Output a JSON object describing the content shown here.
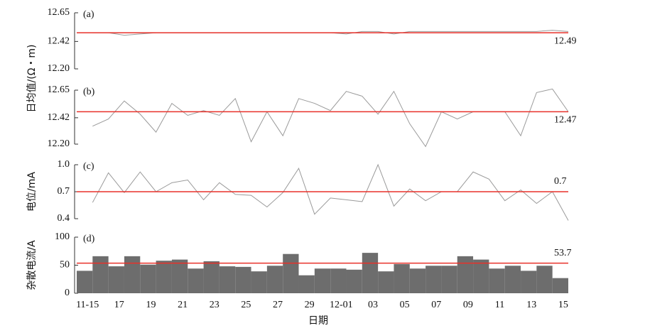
{
  "chart_data": [
    {
      "type": "line",
      "panel_label": "(a)",
      "y_label": "日均值/(Ω・m)",
      "color": "#9a9a9a",
      "values": [
        12.49,
        12.49,
        12.47,
        12.48,
        12.49,
        12.49,
        12.49,
        12.49,
        12.49,
        12.49,
        12.49,
        12.49,
        12.49,
        12.49,
        12.49,
        12.49,
        12.48,
        12.5,
        12.5,
        12.48,
        12.5,
        12.5,
        12.5,
        12.5,
        12.5,
        12.5,
        12.5,
        12.5,
        12.5,
        12.51,
        12.5
      ],
      "reference_line": 12.49,
      "reference_color": "#e8312a",
      "ylim": [
        12.2,
        12.65
      ],
      "yticks": [
        {
          "value": 12.2,
          "label": "12.20"
        },
        12.42,
        12.65
      ]
    },
    {
      "type": "line",
      "panel_label": "(b)",
      "color": "#9a9a9a",
      "values": [
        12.35,
        12.41,
        12.56,
        12.45,
        12.3,
        12.54,
        12.44,
        12.48,
        12.44,
        12.58,
        12.22,
        12.47,
        12.27,
        12.58,
        12.54,
        12.48,
        12.64,
        12.6,
        12.45,
        12.64,
        12.37,
        12.18,
        12.47,
        12.41,
        12.47,
        12.47,
        12.47,
        12.27,
        12.63,
        12.66,
        12.47
      ],
      "reference_line": 12.47,
      "reference_color": "#e8312a",
      "ylim": [
        12.2,
        12.65
      ],
      "yticks": [
        {
          "value": 12.2,
          "label": "12.20"
        },
        12.42,
        12.65
      ]
    },
    {
      "type": "line",
      "panel_label": "(c)",
      "y_label": "电位/mA",
      "color": "#9a9a9a",
      "values": [
        0.58,
        0.91,
        0.69,
        0.92,
        0.7,
        0.8,
        0.83,
        0.61,
        0.8,
        0.67,
        0.66,
        0.53,
        0.69,
        0.96,
        0.45,
        0.63,
        0.61,
        0.59,
        1.0,
        0.54,
        0.73,
        0.6,
        0.7,
        0.7,
        0.92,
        0.84,
        0.6,
        0.72,
        0.57,
        0.7,
        0.38
      ],
      "reference_line": 0.7,
      "reference_color": "#e8312a",
      "ylim": [
        0.4,
        1.0
      ],
      "yticks": [
        0.4,
        0.7,
        {
          "value": 1.0,
          "label": "1.0"
        }
      ]
    },
    {
      "type": "bar",
      "panel_label": "(d)",
      "y_label": "杂散电流/A",
      "x_label": "日期",
      "color": "#6d6d6d",
      "categories": [
        "11-15",
        null,
        "17",
        null,
        "19",
        null,
        "21",
        null,
        "23",
        null,
        "25",
        null,
        "27",
        null,
        "29",
        null,
        "12-01",
        null,
        "03",
        null,
        "05",
        null,
        "07",
        null,
        "09",
        null,
        "11",
        null,
        "13",
        null,
        "15"
      ],
      "values": [
        40,
        66,
        48,
        66,
        51,
        58,
        60,
        44,
        57,
        48,
        47,
        39,
        49,
        70,
        32,
        44,
        44,
        42,
        72,
        39,
        52,
        44,
        49,
        49,
        66,
        60,
        44,
        49,
        40,
        49,
        27
      ],
      "reference_line": 53.7,
      "reference_color": "#e8312a",
      "ylim": [
        0,
        100
      ],
      "yticks": [
        0,
        50,
        100
      ]
    }
  ]
}
